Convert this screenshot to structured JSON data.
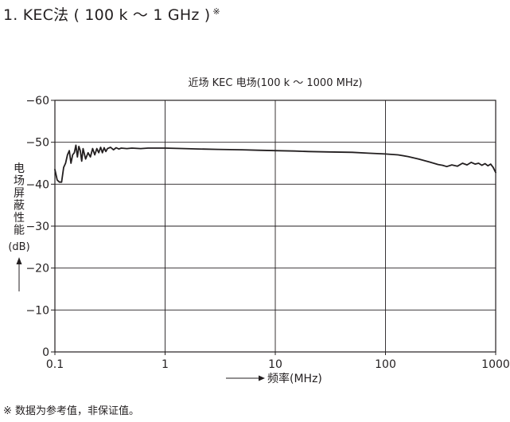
{
  "page": {
    "heading": "1. KEC法 ( 100 k ～ 1 GHz )",
    "heading_mark": "※",
    "footnote": "※ 数据为参考值，非保证值。"
  },
  "chart_data": {
    "type": "line",
    "title": "近场 KEC 电场(100 k ～ 1000 MHz)",
    "xlabel": "频率(MHz)",
    "ylabel": "电场屏蔽性能(dB)",
    "ylabel_chars": [
      "电",
      "场",
      "屏",
      "蔽",
      "性",
      "能"
    ],
    "ylabel_unit": "(dB)",
    "x_scale": "log",
    "xlim": [
      0.1,
      1000
    ],
    "ylim": [
      0,
      -60
    ],
    "x_ticks": [
      0.1,
      1,
      10,
      100,
      1000
    ],
    "x_tick_labels": [
      "0.1",
      "1",
      "10",
      "100",
      "1000"
    ],
    "y_ticks": [
      0,
      -10,
      -20,
      -30,
      -40,
      -50,
      -60
    ],
    "y_tick_labels": [
      "0",
      "−10",
      "−20",
      "−30",
      "−40",
      "−50",
      "−60"
    ],
    "grid": true,
    "line_color": "#231f20",
    "series": [
      {
        "x": [
          0.1,
          0.105,
          0.11,
          0.115,
          0.12,
          0.125,
          0.13,
          0.135,
          0.14,
          0.145,
          0.15,
          0.155,
          0.16,
          0.165,
          0.17,
          0.175,
          0.18,
          0.19,
          0.2,
          0.21,
          0.22,
          0.23,
          0.24,
          0.25,
          0.26,
          0.27,
          0.28,
          0.29,
          0.3,
          0.32,
          0.34,
          0.36,
          0.38,
          0.4,
          0.45,
          0.5,
          0.6,
          0.7,
          0.8,
          1,
          1.5,
          2,
          3,
          5,
          7,
          10,
          15,
          20,
          30,
          50,
          70,
          100,
          130,
          160,
          200,
          250,
          300,
          330,
          360,
          400,
          450,
          500,
          550,
          600,
          650,
          700,
          750,
          800,
          850,
          900,
          950,
          1000
        ],
        "y": [
          -43.5,
          -41,
          -40.5,
          -40.5,
          -44,
          -45,
          -47,
          -48,
          -45,
          -47,
          -47.5,
          -49.3,
          -46.5,
          -49,
          -48,
          -45.5,
          -48.5,
          -46,
          -47.5,
          -46.5,
          -48.5,
          -47,
          -48.5,
          -47.5,
          -48.8,
          -47.5,
          -48.7,
          -47.8,
          -48.5,
          -48.8,
          -48.2,
          -48.7,
          -48.4,
          -48.6,
          -48.5,
          -48.6,
          -48.5,
          -48.6,
          -48.6,
          -48.6,
          -48.5,
          -48.4,
          -48.3,
          -48.2,
          -48.1,
          -48,
          -47.9,
          -47.8,
          -47.7,
          -47.6,
          -47.4,
          -47.2,
          -47,
          -46.6,
          -46,
          -45.3,
          -44.7,
          -44.5,
          -44.2,
          -44.6,
          -44.3,
          -45,
          -44.6,
          -45.2,
          -44.8,
          -45,
          -44.5,
          -44.9,
          -44.4,
          -44.8,
          -44,
          -42.8
        ]
      }
    ]
  }
}
